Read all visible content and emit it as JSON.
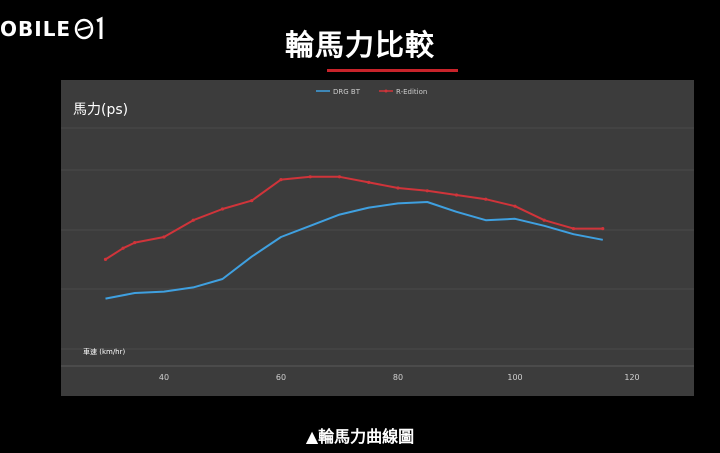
{
  "brand": {
    "logo_text": "OBILE",
    "logo_suffix": "01"
  },
  "title": "輪馬力比較",
  "caption": "▲輪馬力曲線圖",
  "colors": {
    "accent": "#c8232a",
    "series_blue": "#3fa0e0",
    "series_red": "#d0343a",
    "panel": "#3c3c3c",
    "grid": "#4a4a4a"
  },
  "chart_data": {
    "type": "line",
    "ylabel": "馬力(ps)",
    "xlabel": "車速 (km/hr)",
    "xlim": [
      23,
      145
    ],
    "x_ticks": [
      40,
      60,
      80,
      100,
      120
    ],
    "legend_position": "top-center",
    "grid": true,
    "series": [
      {
        "name": "DRG BT",
        "color": "#3fa0e0",
        "x": [
          30,
          35,
          40,
          45,
          50,
          55,
          60,
          65,
          70,
          75,
          80,
          85,
          90,
          95,
          100,
          105,
          110,
          115
        ],
        "values": [
          18,
          20,
          20.5,
          22,
          25,
          33,
          40,
          44,
          48,
          50.5,
          52,
          52.5,
          49,
          46,
          46.5,
          44,
          41,
          39
        ]
      },
      {
        "name": "R-Edition",
        "color": "#d0343a",
        "x": [
          30,
          33,
          35,
          40,
          45,
          50,
          55,
          60,
          65,
          70,
          75,
          80,
          85,
          90,
          95,
          100,
          105,
          110,
          115
        ],
        "values": [
          32,
          36,
          38,
          40,
          46,
          50,
          53,
          60.5,
          61.5,
          61.5,
          59.5,
          57.5,
          56.5,
          55,
          53.5,
          51,
          46,
          43,
          43
        ]
      }
    ]
  }
}
